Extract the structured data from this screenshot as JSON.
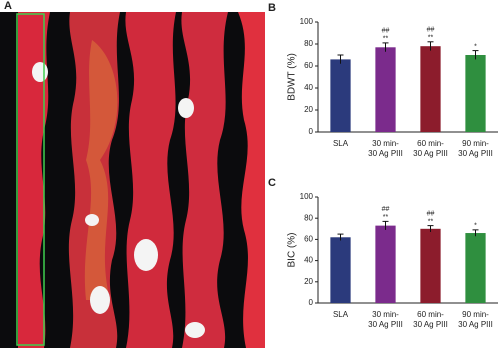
{
  "panel_a": {
    "label": "A"
  },
  "chart_data": [
    {
      "type": "bar",
      "panel_label": "B",
      "ylabel": "BDWT (%)",
      "categories": [
        [
          "SLA"
        ],
        [
          "30 min-",
          "30 Ag PIII"
        ],
        [
          "60 min-",
          "30 Ag PIII"
        ],
        [
          "90 min-",
          "30 Ag PIII"
        ]
      ],
      "values": [
        66,
        77,
        78,
        70
      ],
      "errors": [
        4,
        4,
        4,
        4
      ],
      "significance": [
        [],
        [
          "##",
          "**"
        ],
        [
          "##",
          "**"
        ],
        [
          "*"
        ]
      ],
      "colors": [
        "#2b3a7c",
        "#7b2b8c",
        "#8c1c2c",
        "#2f8f3f"
      ],
      "ylim": [
        0,
        100
      ],
      "yticks": [
        0,
        20,
        40,
        60,
        80,
        100
      ]
    },
    {
      "type": "bar",
      "panel_label": "C",
      "ylabel": "BIC (%)",
      "categories": [
        [
          "SLA"
        ],
        [
          "30 min-",
          "30 Ag PIII"
        ],
        [
          "60 min-",
          "30 Ag PIII"
        ],
        [
          "90 min-",
          "30 Ag PIII"
        ]
      ],
      "values": [
        62,
        73,
        70,
        66
      ],
      "errors": [
        3,
        4,
        3,
        3
      ],
      "significance": [
        [],
        [
          "##",
          "**"
        ],
        [
          "##",
          "**"
        ],
        [
          "*"
        ]
      ],
      "colors": [
        "#2b3a7c",
        "#7b2b8c",
        "#8c1c2c",
        "#2f8f3f"
      ],
      "ylim": [
        0,
        100
      ],
      "yticks": [
        0,
        20,
        40,
        60,
        80,
        100
      ]
    }
  ]
}
